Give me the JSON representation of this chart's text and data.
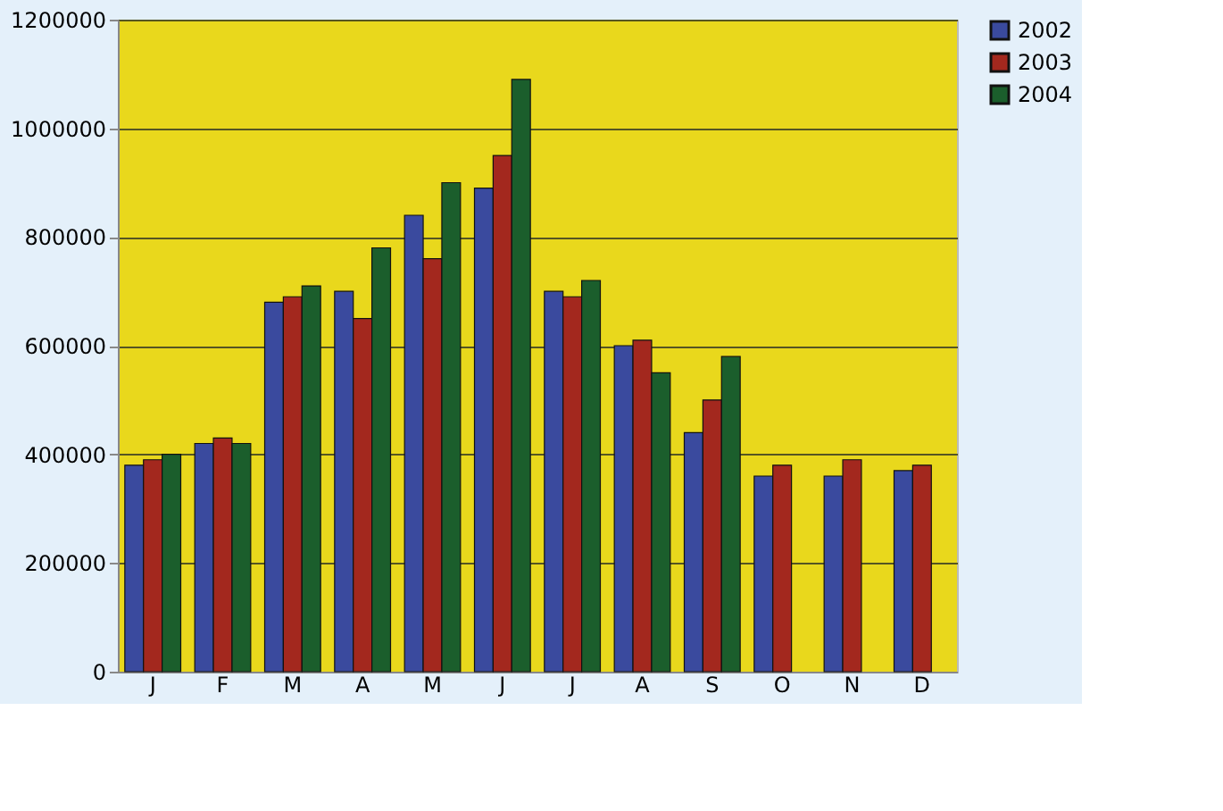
{
  "chart_data": {
    "type": "bar",
    "categories": [
      "J",
      "F",
      "M",
      "A",
      "M",
      "J",
      "J",
      "A",
      "S",
      "O",
      "N",
      "D"
    ],
    "series": [
      {
        "name": "2002",
        "color": "#3a4a9e",
        "values": [
          380000,
          420000,
          680000,
          700000,
          840000,
          890000,
          700000,
          600000,
          440000,
          360000,
          360000,
          370000
        ]
      },
      {
        "name": "2003",
        "color": "#a3281e",
        "values": [
          390000,
          430000,
          690000,
          650000,
          760000,
          950000,
          690000,
          610000,
          500000,
          380000,
          390000,
          380000
        ]
      },
      {
        "name": "2004",
        "color": "#1b5e2c",
        "values": [
          400000,
          420000,
          710000,
          780000,
          900000,
          1090000,
          720000,
          550000,
          580000,
          null,
          null,
          null
        ]
      }
    ],
    "ylim": [
      0,
      1200000
    ],
    "yticks": [
      0,
      200000,
      400000,
      600000,
      800000,
      1000000,
      1200000
    ],
    "grid": "y",
    "legend": "right"
  }
}
